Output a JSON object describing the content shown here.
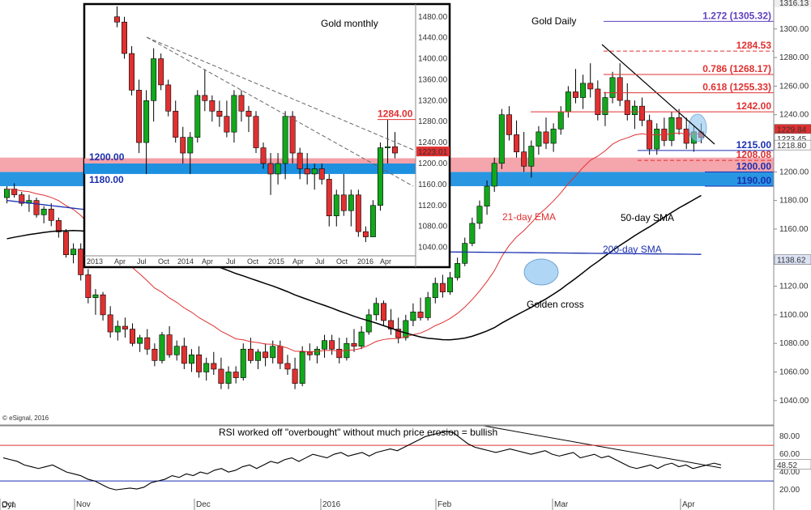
{
  "chart_data": [
    {
      "type": "candlestick",
      "title": "Gold Daily",
      "y_axis_ticks": [
        1040,
        1060,
        1080,
        1100,
        1120,
        1140,
        1160,
        1180,
        1200,
        1220,
        1240,
        1260,
        1280,
        1300
      ],
      "ylim": [
        1028,
        1318
      ],
      "x_tick_labels": [
        "Oct",
        "Nov",
        "Dec",
        "2016",
        "Feb",
        "Mar",
        "Apr"
      ],
      "price_axis_top_label": "1316.13",
      "price_tags": [
        {
          "label": "1229.84",
          "value": 1229.84,
          "color": "#e03030"
        },
        {
          "label": "1223.45",
          "value": 1223.45,
          "color": "#ffffff"
        },
        {
          "label": "1218.80",
          "value": 1218.8,
          "color": "#ffffff"
        },
        {
          "label": "1138.62",
          "value": 1138.62,
          "color": "#dde3f5"
        }
      ],
      "series": [
        {
          "name": "21-day EMA",
          "color": "#e03030"
        },
        {
          "name": "50-day SMA",
          "color": "#000000"
        },
        {
          "name": "200-day SMA",
          "color": "#1a2fb0"
        }
      ],
      "levels": [
        {
          "label": "1.272 (1305.32)",
          "value": 1305.32,
          "color": "#6040c0"
        },
        {
          "label": "1284.53",
          "value": 1284.53,
          "color": "#e03030"
        },
        {
          "label": "0.786 (1268.17)",
          "value": 1268.17,
          "color": "#e03030"
        },
        {
          "label": "0.618 (1255.33)",
          "value": 1255.33,
          "color": "#e03030"
        },
        {
          "label": "1242.00",
          "value": 1242,
          "color": "#e03030"
        },
        {
          "label": "1215.00",
          "value": 1215,
          "color": "#1a2fb0"
        },
        {
          "label": "1208.08",
          "value": 1208.08,
          "color": "#e03030"
        },
        {
          "label": "1200.00",
          "value": 1200,
          "color": "#1a2fb0"
        },
        {
          "label": "1190.00",
          "value": 1190,
          "color": "#1a2fb0"
        }
      ],
      "zones": [
        {
          "from": 1190,
          "to": 1200,
          "color": "#1e90e0",
          "name": "support"
        },
        {
          "from": 1200,
          "to": 1210,
          "color": "#f4a0a8",
          "name": "resistance"
        }
      ],
      "annotations": [
        "Golden cross",
        "21-day EMA",
        "50-day SMA",
        "200-day SMA"
      ],
      "candles": [
        [
          1182,
          1190,
          1178,
          1188
        ],
        [
          1188,
          1192,
          1182,
          1184
        ],
        [
          1184,
          1186,
          1176,
          1178
        ],
        [
          1178,
          1184,
          1172,
          1180
        ],
        [
          1180,
          1182,
          1168,
          1170
        ],
        [
          1170,
          1176,
          1164,
          1174
        ],
        [
          1174,
          1178,
          1162,
          1166
        ],
        [
          1166,
          1168,
          1154,
          1158
        ],
        [
          1158,
          1160,
          1140,
          1142
        ],
        [
          1142,
          1150,
          1136,
          1146
        ],
        [
          1146,
          1150,
          1124,
          1128
        ],
        [
          1128,
          1132,
          1108,
          1112
        ],
        [
          1112,
          1118,
          1100,
          1114
        ],
        [
          1114,
          1116,
          1096,
          1100
        ],
        [
          1100,
          1106,
          1084,
          1088
        ],
        [
          1088,
          1096,
          1082,
          1092
        ],
        [
          1092,
          1098,
          1084,
          1090
        ],
        [
          1090,
          1094,
          1078,
          1080
        ],
        [
          1080,
          1086,
          1074,
          1084
        ],
        [
          1084,
          1090,
          1072,
          1076
        ],
        [
          1076,
          1080,
          1064,
          1068
        ],
        [
          1068,
          1088,
          1066,
          1086
        ],
        [
          1086,
          1092,
          1070,
          1072
        ],
        [
          1072,
          1082,
          1068,
          1078
        ],
        [
          1078,
          1084,
          1062,
          1066
        ],
        [
          1066,
          1076,
          1060,
          1072
        ],
        [
          1072,
          1078,
          1056,
          1060
        ],
        [
          1060,
          1070,
          1054,
          1066
        ],
        [
          1066,
          1074,
          1058,
          1062
        ],
        [
          1062,
          1070,
          1048,
          1052
        ],
        [
          1052,
          1064,
          1048,
          1060
        ],
        [
          1060,
          1064,
          1052,
          1056
        ],
        [
          1056,
          1080,
          1054,
          1076
        ],
        [
          1076,
          1084,
          1066,
          1068
        ],
        [
          1068,
          1076,
          1062,
          1074
        ],
        [
          1074,
          1080,
          1064,
          1070
        ],
        [
          1070,
          1082,
          1066,
          1078
        ],
        [
          1078,
          1082,
          1062,
          1066
        ],
        [
          1066,
          1072,
          1058,
          1062
        ],
        [
          1062,
          1070,
          1048,
          1052
        ],
        [
          1052,
          1078,
          1050,
          1074
        ],
        [
          1074,
          1080,
          1068,
          1072
        ],
        [
          1072,
          1078,
          1066,
          1076
        ],
        [
          1076,
          1086,
          1070,
          1082
        ],
        [
          1082,
          1086,
          1072,
          1076
        ],
        [
          1076,
          1084,
          1066,
          1070
        ],
        [
          1070,
          1084,
          1068,
          1080
        ],
        [
          1080,
          1090,
          1074,
          1078
        ],
        [
          1078,
          1092,
          1076,
          1088
        ],
        [
          1088,
          1104,
          1086,
          1100
        ],
        [
          1100,
          1112,
          1096,
          1108
        ],
        [
          1108,
          1110,
          1092,
          1096
        ],
        [
          1096,
          1104,
          1086,
          1090
        ],
        [
          1090,
          1098,
          1080,
          1084
        ],
        [
          1084,
          1100,
          1082,
          1096
        ],
        [
          1096,
          1108,
          1092,
          1102
        ],
        [
          1102,
          1112,
          1096,
          1098
        ],
        [
          1098,
          1116,
          1096,
          1112
        ],
        [
          1112,
          1126,
          1108,
          1122
        ],
        [
          1122,
          1128,
          1112,
          1116
        ],
        [
          1116,
          1130,
          1114,
          1126
        ],
        [
          1126,
          1140,
          1124,
          1136
        ],
        [
          1136,
          1154,
          1134,
          1150
        ],
        [
          1150,
          1168,
          1148,
          1164
        ],
        [
          1164,
          1180,
          1160,
          1176
        ],
        [
          1176,
          1194,
          1170,
          1190
        ],
        [
          1190,
          1210,
          1186,
          1206
        ],
        [
          1206,
          1244,
          1202,
          1240
        ],
        [
          1240,
          1246,
          1222,
          1226
        ],
        [
          1226,
          1236,
          1210,
          1214
        ],
        [
          1214,
          1228,
          1200,
          1204
        ],
        [
          1204,
          1222,
          1196,
          1218
        ],
        [
          1218,
          1232,
          1212,
          1228
        ],
        [
          1228,
          1238,
          1216,
          1220
        ],
        [
          1220,
          1234,
          1214,
          1230
        ],
        [
          1230,
          1246,
          1226,
          1242
        ],
        [
          1242,
          1260,
          1238,
          1256
        ],
        [
          1256,
          1272,
          1248,
          1252
        ],
        [
          1252,
          1268,
          1244,
          1262
        ],
        [
          1262,
          1276,
          1252,
          1258
        ],
        [
          1258,
          1264,
          1236,
          1240
        ],
        [
          1240,
          1256,
          1232,
          1252
        ],
        [
          1252,
          1270,
          1248,
          1266
        ],
        [
          1266,
          1276,
          1246,
          1250
        ],
        [
          1250,
          1262,
          1236,
          1240
        ],
        [
          1240,
          1250,
          1230,
          1246
        ],
        [
          1246,
          1252,
          1232,
          1236
        ],
        [
          1236,
          1240,
          1212,
          1216
        ],
        [
          1216,
          1234,
          1212,
          1230
        ],
        [
          1230,
          1238,
          1218,
          1222
        ],
        [
          1222,
          1242,
          1218,
          1238
        ],
        [
          1238,
          1244,
          1226,
          1230
        ],
        [
          1230,
          1238,
          1216,
          1220
        ],
        [
          1220,
          1232,
          1214,
          1228
        ],
        [
          1228,
          1234,
          1220,
          1224
        ]
      ]
    },
    {
      "type": "candlestick",
      "title": "Gold monthly",
      "y_axis_ticks": [
        1040,
        1080,
        1120,
        1160,
        1200,
        1240,
        1280,
        1320,
        1360,
        1400,
        1440,
        1480
      ],
      "ylim": [
        1030,
        1492
      ],
      "x_tick_labels": [
        "2013",
        "Apr",
        "Jul",
        "Oct",
        "2014",
        "Apr",
        "Jul",
        "Oct",
        "2015",
        "Apr",
        "Jul",
        "Oct",
        "2016",
        "Apr"
      ],
      "price_tags": [
        {
          "label": "1223.01",
          "value": 1223.01,
          "color": "#e03030"
        }
      ],
      "levels": [
        {
          "label": "1284.00",
          "value": 1284,
          "color": "#e03030"
        },
        {
          "label": "1200.00",
          "value": 1200,
          "color": "#1a2fb0"
        },
        {
          "label": "1180.00",
          "value": 1180,
          "color": "#1a2fb0"
        }
      ],
      "candles": [
        [
          1480,
          1500,
          1460,
          1470
        ],
        [
          1470,
          1480,
          1400,
          1410
        ],
        [
          1410,
          1424,
          1330,
          1340
        ],
        [
          1340,
          1360,
          1220,
          1240
        ],
        [
          1240,
          1340,
          1180,
          1320
        ],
        [
          1320,
          1420,
          1280,
          1400
        ],
        [
          1400,
          1410,
          1340,
          1350
        ],
        [
          1350,
          1360,
          1290,
          1300
        ],
        [
          1300,
          1320,
          1240,
          1250
        ],
        [
          1250,
          1270,
          1200,
          1220
        ],
        [
          1220,
          1260,
          1180,
          1250
        ],
        [
          1250,
          1340,
          1240,
          1330
        ],
        [
          1330,
          1380,
          1300,
          1320
        ],
        [
          1320,
          1330,
          1280,
          1300
        ],
        [
          1300,
          1320,
          1270,
          1290
        ],
        [
          1290,
          1320,
          1250,
          1260
        ],
        [
          1260,
          1340,
          1240,
          1330
        ],
        [
          1330,
          1340,
          1280,
          1300
        ],
        [
          1300,
          1310,
          1260,
          1290
        ],
        [
          1290,
          1300,
          1220,
          1230
        ],
        [
          1230,
          1240,
          1190,
          1200
        ],
        [
          1200,
          1220,
          1140,
          1180
        ],
        [
          1180,
          1220,
          1160,
          1200
        ],
        [
          1200,
          1300,
          1170,
          1290
        ],
        [
          1290,
          1300,
          1200,
          1220
        ],
        [
          1220,
          1230,
          1170,
          1190
        ],
        [
          1190,
          1220,
          1160,
          1180
        ],
        [
          1180,
          1200,
          1150,
          1190
        ],
        [
          1190,
          1200,
          1160,
          1170
        ],
        [
          1170,
          1180,
          1080,
          1100
        ],
        [
          1100,
          1150,
          1080,
          1140
        ],
        [
          1140,
          1180,
          1100,
          1110
        ],
        [
          1110,
          1150,
          1080,
          1140
        ],
        [
          1140,
          1150,
          1060,
          1070
        ],
        [
          1070,
          1080,
          1050,
          1060
        ],
        [
          1060,
          1130,
          1060,
          1120
        ],
        [
          1120,
          1240,
          1110,
          1230
        ],
        [
          1230,
          1284,
          1200,
          1232
        ],
        [
          1232,
          1260,
          1210,
          1220
        ]
      ]
    },
    {
      "type": "line",
      "title": "RSI worked off \"overbought\" without much price erosion = bullish",
      "y_axis_ticks": [
        20,
        40,
        60,
        80
      ],
      "ylim": [
        11,
        92
      ],
      "horizontal_lines": [
        {
          "value": 70,
          "color": "#e03030"
        },
        {
          "value": 30,
          "color": "#1a2fb0"
        }
      ],
      "last_value_label": "48.52",
      "values": [
        56,
        54,
        52,
        48,
        46,
        44,
        46,
        48,
        44,
        40,
        38,
        36,
        32,
        30,
        26,
        22,
        20,
        21,
        22,
        21,
        23,
        28,
        30,
        32,
        36,
        34,
        38,
        36,
        40,
        38,
        42,
        44,
        40,
        42,
        46,
        48,
        44,
        48,
        52,
        50,
        54,
        56,
        52,
        56,
        60,
        58,
        56,
        60,
        62,
        58,
        60,
        62,
        58,
        62,
        64,
        66,
        64,
        68,
        72,
        76,
        80,
        82,
        84,
        86,
        84,
        78,
        72,
        68,
        66,
        64,
        62,
        64,
        66,
        64,
        62,
        60,
        62,
        64,
        60,
        58,
        60,
        62,
        56,
        58,
        60,
        56,
        58,
        54,
        50,
        46,
        44,
        46,
        48,
        44,
        48,
        50,
        46,
        48,
        44,
        46,
        48,
        50,
        48
      ]
    }
  ],
  "labels": {
    "rsi_title": "RSI worked off \"overbought\" without much price erosion = bullish",
    "golden_cross": "Golden cross",
    "ema21": "21-day EMA",
    "sma50": "50-day SMA",
    "sma200": "200-day SMA",
    "daily_title": "Gold Daily",
    "monthly_title": "Gold monthly",
    "copyright": "© eSignal, 2016",
    "bottom_left": "Dyn"
  },
  "colors": {
    "bull": "#12a81c",
    "bear": "#e03030",
    "ema": "#e03030",
    "sma50": "#000000",
    "sma200": "#1a2fb0",
    "blue_zone": "#1e90e0",
    "pink_zone": "#f4a0a8"
  }
}
